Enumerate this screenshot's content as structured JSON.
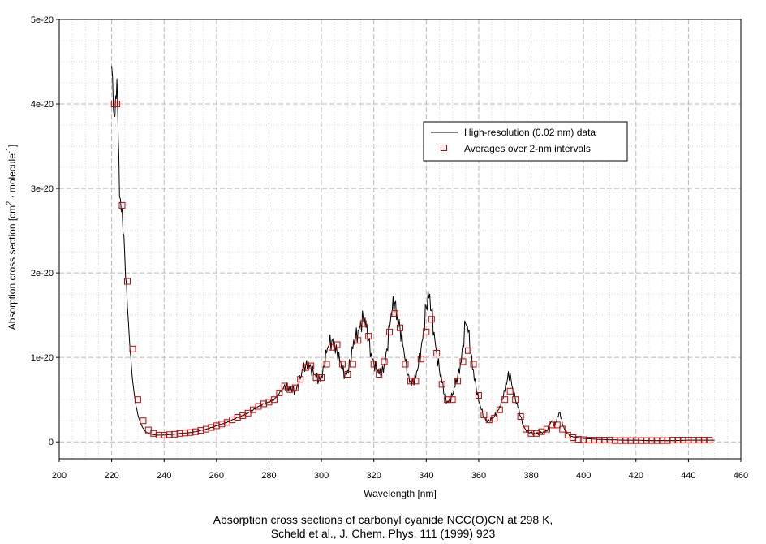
{
  "chart_data": {
    "type": "line",
    "title": "",
    "xlabel": "Wavelength [nm]",
    "ylabel_parts": [
      "Absorption cross section [cm",
      "2",
      " · molecule",
      "-1",
      "]"
    ],
    "xlim": [
      200,
      460
    ],
    "ylim": [
      -2e-21,
      5e-20
    ],
    "xticks": [
      200,
      220,
      240,
      260,
      280,
      300,
      320,
      340,
      360,
      380,
      400,
      420,
      440,
      460
    ],
    "xtick_labels": [
      "200",
      "220",
      "240",
      "260",
      "280",
      "300",
      "320",
      "340",
      "360",
      "380",
      "400",
      "420",
      "440",
      "460"
    ],
    "yticks": [
      0,
      1e-20,
      2e-20,
      3e-20,
      4e-20,
      5e-20
    ],
    "ytick_labels": [
      "0",
      "1e-20",
      "2e-20",
      "3e-20",
      "4e-20",
      "5e-20"
    ],
    "grid": true,
    "legend_position": "upper-right",
    "series": [
      {
        "name": "High-resolution (0.02 nm) data",
        "style": "line",
        "color": "#000000",
        "x": [
          220,
          221,
          221.5,
          222,
          222.5,
          223,
          224,
          225,
          226,
          227,
          228,
          229,
          230,
          231,
          232,
          233,
          234,
          235,
          236,
          237,
          238,
          240,
          242,
          244,
          246,
          248,
          250,
          252,
          254,
          256,
          258,
          260,
          262,
          264,
          266,
          268,
          270,
          272,
          274,
          276,
          278,
          280,
          282,
          284,
          285,
          286,
          287,
          288,
          289,
          290,
          291,
          292,
          293,
          294,
          295,
          296,
          297,
          298,
          299,
          300,
          301,
          302,
          303,
          304,
          305,
          306,
          307,
          308,
          309,
          310,
          311,
          312,
          313,
          314,
          315,
          316,
          317,
          318,
          319,
          320,
          321,
          322,
          323,
          324,
          325,
          326,
          327,
          328,
          329,
          330,
          331,
          332,
          333,
          334,
          335,
          336,
          337,
          338,
          339,
          340,
          341,
          342,
          343,
          344,
          345,
          346,
          347,
          348,
          349,
          350,
          351,
          352,
          353,
          354,
          355,
          356,
          357,
          358,
          359,
          360,
          361,
          362,
          363,
          364,
          365,
          366,
          367,
          368,
          369,
          370,
          371,
          372,
          373,
          374,
          375,
          376,
          377,
          378,
          379,
          380,
          382,
          384,
          386,
          387,
          388,
          389,
          390,
          391,
          392,
          393,
          394,
          395,
          396,
          398,
          400,
          405,
          410,
          415,
          420,
          425,
          430,
          435,
          440,
          445,
          450
        ],
        "y": [
          4.45e-20,
          3.85e-20,
          4.1e-20,
          4.3e-20,
          3.6e-20,
          2.9e-20,
          2.75e-20,
          2.2e-20,
          1.6e-20,
          1.1e-20,
          7.2e-21,
          4.8e-21,
          3.2e-21,
          2.2e-21,
          1.6e-21,
          1.2e-21,
          1e-21,
          9e-22,
          8.5e-22,
          8e-22,
          8e-22,
          8e-22,
          8.5e-22,
          9e-22,
          1e-21,
          1.05e-21,
          1.1e-21,
          1.2e-21,
          1.35e-21,
          1.5e-21,
          1.7e-21,
          1.9e-21,
          2.1e-21,
          2.3e-21,
          2.6e-21,
          2.9e-21,
          3.1e-21,
          3.4e-21,
          3.8e-21,
          4.2e-21,
          4.5e-21,
          4.7e-21,
          5e-21,
          5.8e-21,
          6.2e-21,
          6.8e-21,
          6.4e-21,
          6e-21,
          6.3e-21,
          6e-21,
          6.8e-21,
          7.5e-21,
          8.5e-21,
          9e-21,
          9.5e-21,
          8.8e-21,
          8e-21,
          7.6e-21,
          7.3e-21,
          7.8e-21,
          9e-21,
          1.05e-20,
          1.15e-20,
          1.2e-20,
          1.18e-20,
          1.05e-20,
          9.5e-21,
          8.5e-21,
          8e-21,
          8.5e-21,
          9.5e-21,
          1.1e-20,
          1.22e-20,
          1.32e-20,
          1.42e-20,
          1.45e-20,
          1.35e-20,
          1.2e-20,
          1.05e-20,
          9.5e-21,
          8.5e-21,
          8e-21,
          8.2e-21,
          9.2e-21,
          1.1e-20,
          1.35e-20,
          1.55e-20,
          1.65e-20,
          1.5e-20,
          1.35e-20,
          1.15e-20,
          9.5e-21,
          8e-21,
          7.2e-21,
          7e-21,
          7.5e-21,
          9e-21,
          1.1e-20,
          1.35e-20,
          1.6e-20,
          1.7e-20,
          1.55e-20,
          1.3e-20,
          1.05e-20,
          8.5e-21,
          7e-21,
          5.5e-21,
          4.8e-21,
          5e-21,
          5.5e-21,
          6.5e-21,
          7.8e-21,
          9.2e-21,
          1.15e-20,
          1.4e-20,
          1.3e-20,
          1.05e-20,
          8.5e-21,
          6.5e-21,
          4.8e-21,
          3.8e-21,
          3e-21,
          2.6e-21,
          2.5e-21,
          2.7e-21,
          3e-21,
          3.5e-21,
          4.2e-21,
          5e-21,
          6e-21,
          7.5e-21,
          8.2e-21,
          6.2e-21,
          5e-21,
          4e-21,
          3e-21,
          2e-21,
          1.4e-21,
          1.1e-21,
          1e-21,
          1e-21,
          1.1e-21,
          1.3e-21,
          2e-21,
          2.5e-21,
          1.8e-21,
          3e-21,
          3.5e-21,
          2e-21,
          1.3e-21,
          1e-21,
          7e-22,
          6e-22,
          5e-22,
          4e-22,
          3e-22,
          2.5e-22,
          2e-22,
          2e-22,
          1.5e-22,
          1.5e-22,
          1.5e-22,
          2e-22,
          2e-22,
          2e-22
        ]
      },
      {
        "name": "Averages over 2-nm intervals",
        "style": "marker",
        "color": "#cc0000",
        "x": [
          221,
          222,
          224,
          226,
          228,
          230,
          232,
          234,
          236,
          238,
          240,
          242,
          244,
          246,
          248,
          250,
          252,
          254,
          256,
          258,
          260,
          262,
          264,
          266,
          268,
          270,
          272,
          274,
          276,
          278,
          280,
          282,
          284,
          286,
          288,
          290,
          292,
          294,
          296,
          298,
          300,
          302,
          304,
          306,
          308,
          310,
          312,
          314,
          316,
          318,
          320,
          322,
          324,
          326,
          328,
          330,
          332,
          334,
          336,
          338,
          340,
          342,
          344,
          346,
          348,
          350,
          352,
          354,
          356,
          358,
          360,
          362,
          364,
          366,
          368,
          370,
          372,
          374,
          376,
          378,
          380,
          382,
          384,
          386,
          388,
          390,
          392,
          394,
          396,
          398,
          400,
          402,
          404,
          406,
          408,
          410,
          412,
          414,
          416,
          418,
          420,
          422,
          424,
          426,
          428,
          430,
          432,
          434,
          436,
          438,
          440,
          442,
          444,
          446,
          448
        ],
        "y": [
          4e-20,
          4e-20,
          2.8e-20,
          1.9e-20,
          1.1e-20,
          5e-21,
          2.5e-21,
          1.4e-21,
          1e-21,
          8e-22,
          8e-22,
          8.5e-22,
          9e-22,
          1e-21,
          1.05e-21,
          1.1e-21,
          1.2e-21,
          1.35e-21,
          1.5e-21,
          1.7e-21,
          1.9e-21,
          2.1e-21,
          2.3e-21,
          2.6e-21,
          2.9e-21,
          3.1e-21,
          3.4e-21,
          3.8e-21,
          4.2e-21,
          4.5e-21,
          4.7e-21,
          5e-21,
          5.8e-21,
          6.6e-21,
          6.2e-21,
          6.4e-21,
          7.4e-21,
          8.8e-21,
          9e-21,
          7.6e-21,
          7.6e-21,
          9.2e-21,
          1.12e-20,
          1.15e-20,
          9.2e-21,
          8e-21,
          9.2e-21,
          1.2e-20,
          1.4e-20,
          1.25e-20,
          9.2e-21,
          8e-21,
          9.5e-21,
          1.3e-20,
          1.52e-20,
          1.35e-20,
          9.2e-21,
          7.2e-21,
          7.2e-21,
          9.8e-21,
          1.3e-20,
          1.45e-20,
          1.05e-20,
          6.8e-21,
          5e-21,
          5e-21,
          7.2e-21,
          9.5e-21,
          1.08e-20,
          9.2e-21,
          5.5e-21,
          3.2e-21,
          2.6e-21,
          2.8e-21,
          3.8e-21,
          5e-21,
          6e-21,
          5e-21,
          3e-21,
          1.5e-21,
          1e-21,
          1e-21,
          1.2e-21,
          1.5e-21,
          2e-21,
          2e-21,
          1.5e-21,
          8e-22,
          5e-22,
          3e-22,
          2.5e-22,
          2e-22,
          2e-22,
          2e-22,
          2e-22,
          2e-22,
          1.5e-22,
          1.5e-22,
          1.5e-22,
          1.5e-22,
          1.5e-22,
          1.5e-22,
          1.5e-22,
          1.5e-22,
          1.5e-22,
          1.5e-22,
          1.5e-22,
          2e-22,
          2e-22,
          2e-22,
          2e-22,
          2e-22,
          2e-22,
          2e-22,
          2e-22
        ]
      }
    ]
  },
  "caption": {
    "line1": "Absorption cross sections of carbonyl cyanide NCC(O)CN at 298 K,",
    "line2": "Scheld et al., J. Chem. Phys. 111 (1999) 923"
  }
}
